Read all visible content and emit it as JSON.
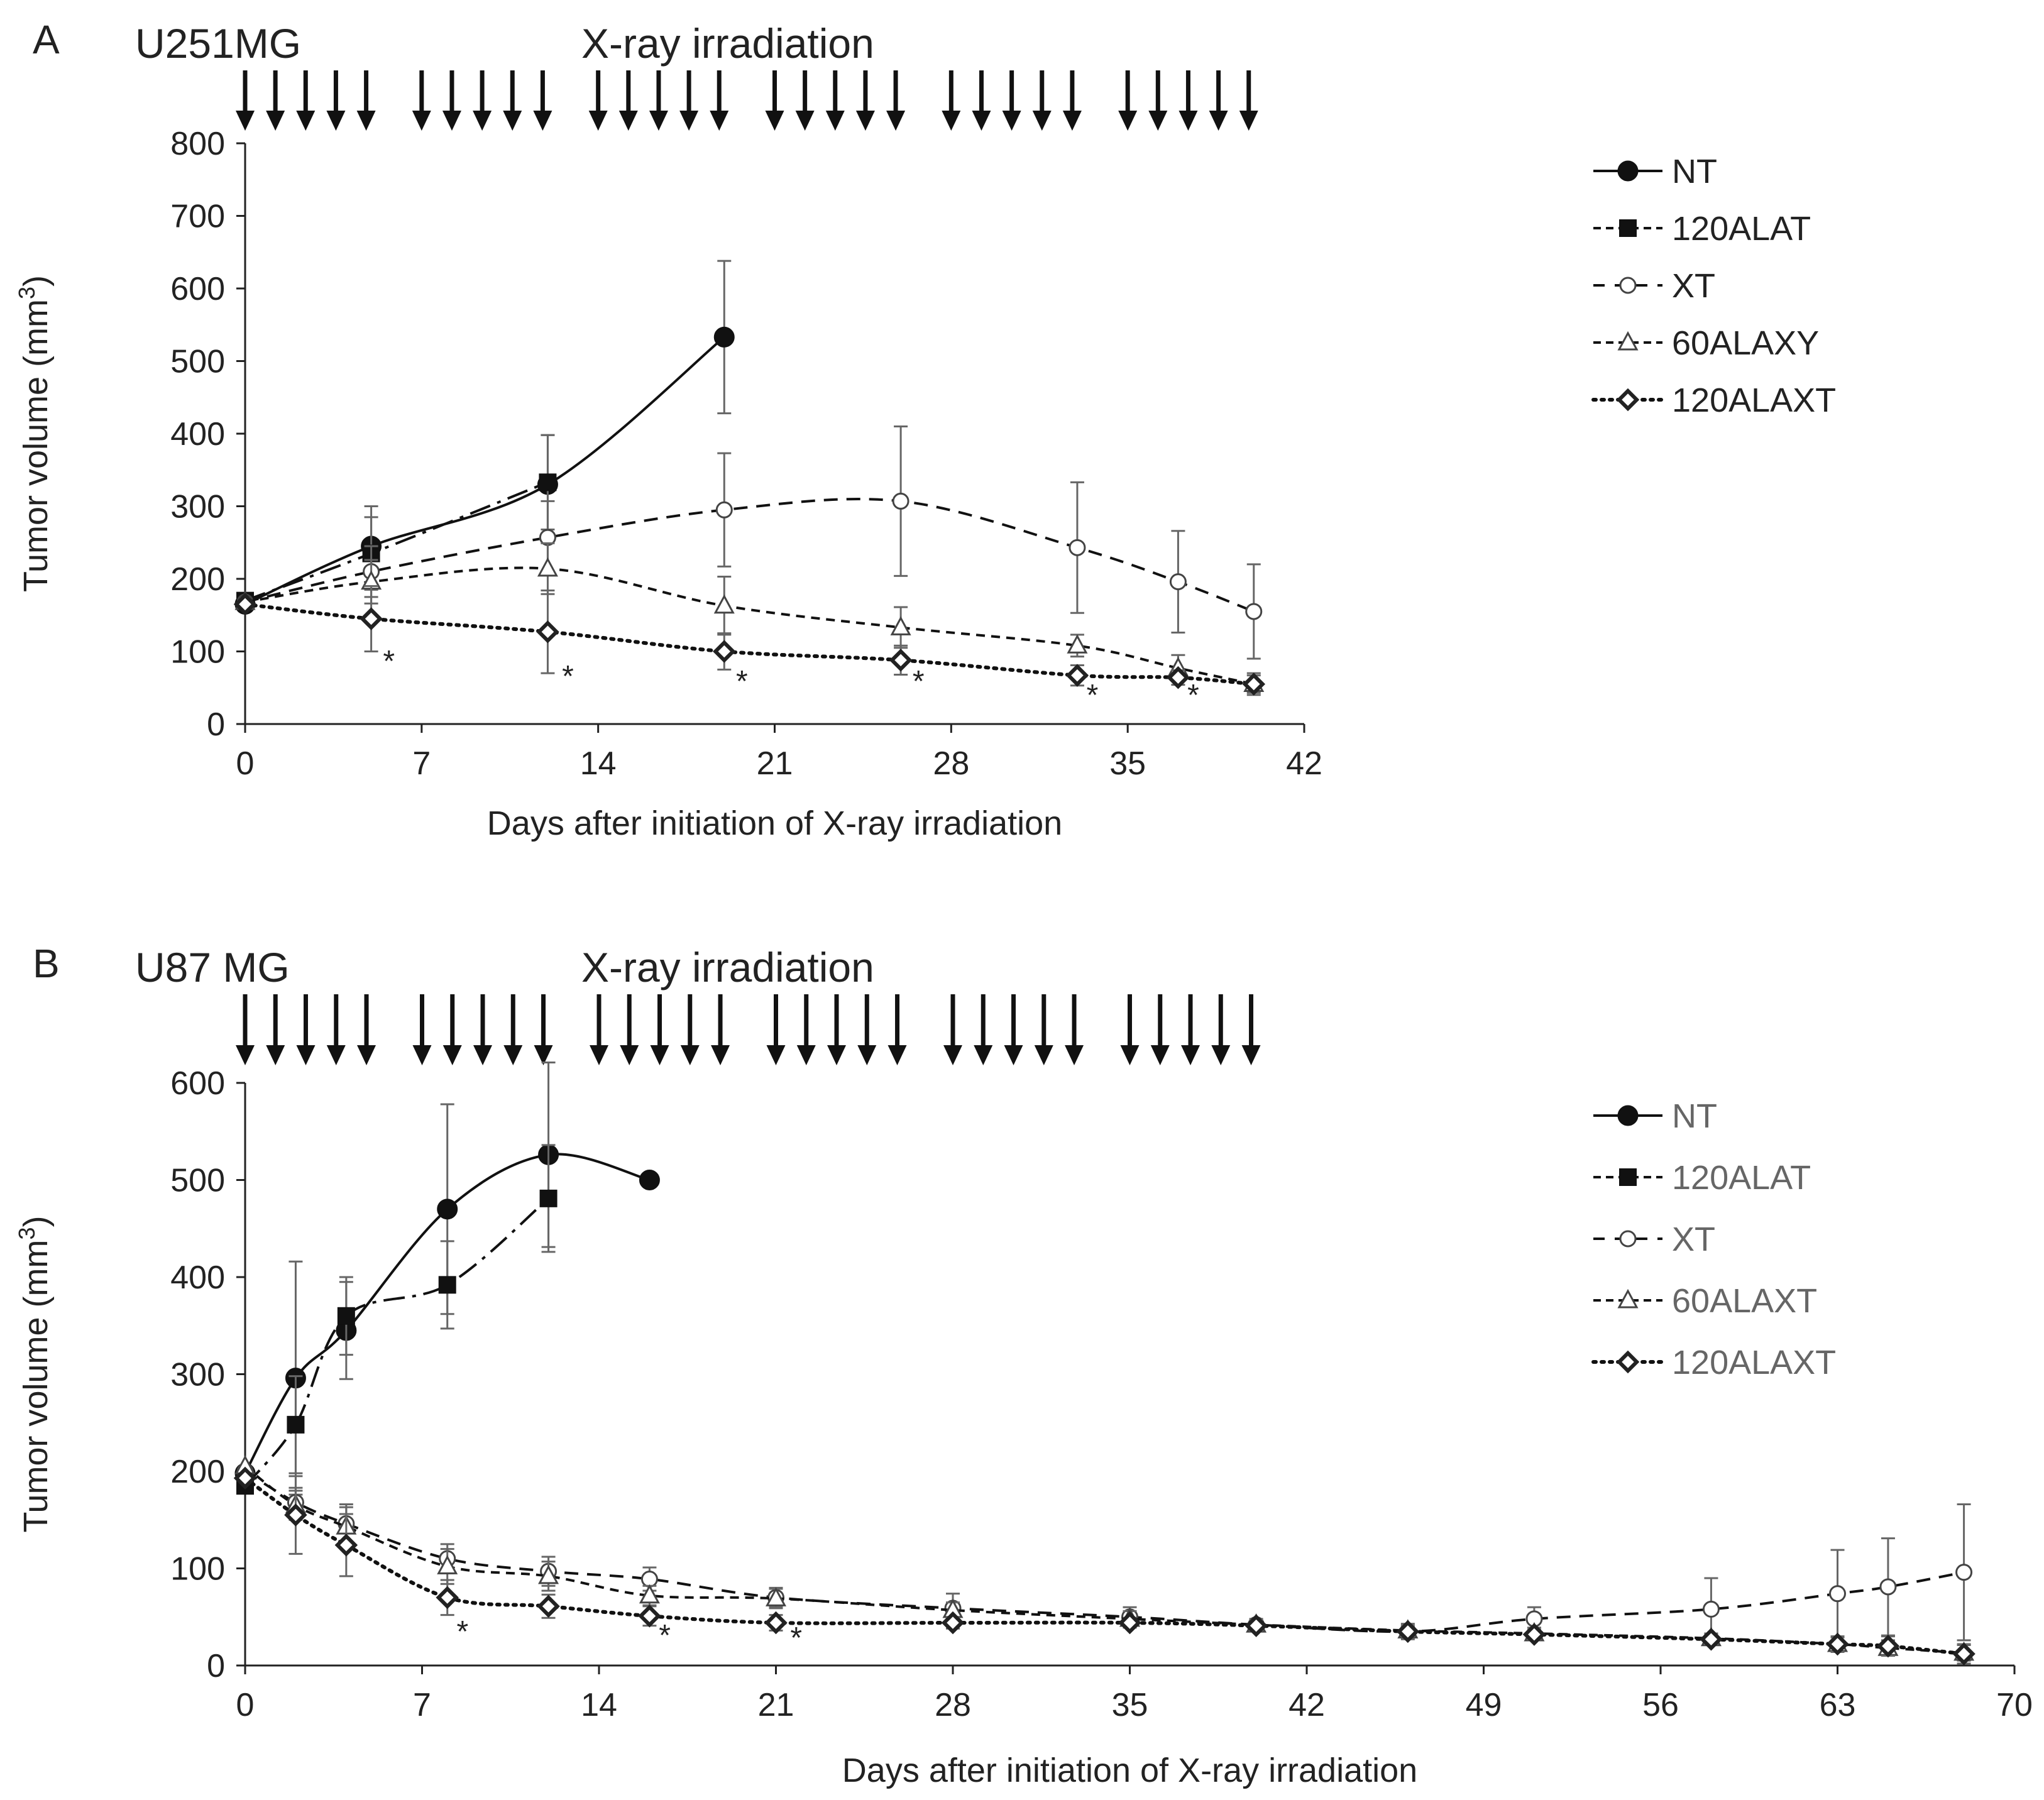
{
  "chart_data": [
    {
      "panel_label": "A",
      "type": "line",
      "title": "U251MG",
      "annotation": "X-ray irradiation",
      "xlabel": "Days after initiation of X-ray irradiation",
      "ylabel_main": "Tumor volume (mm",
      "ylabel_sup": "3",
      "ylabel_end": ")",
      "xlim": [
        0,
        42
      ],
      "ylim": [
        0,
        800
      ],
      "xticks": [
        0,
        7,
        14,
        21,
        28,
        35,
        42
      ],
      "yticks": [
        0,
        100,
        200,
        300,
        400,
        500,
        600,
        700,
        800
      ],
      "irradiation_days": [
        0,
        1.2,
        2.4,
        3.6,
        4.8,
        7,
        8.2,
        9.4,
        10.6,
        11.8,
        14,
        15.2,
        16.4,
        17.6,
        18.8,
        21,
        22.2,
        23.4,
        24.6,
        25.8,
        28,
        29.2,
        30.4,
        31.6,
        32.8,
        35,
        36.2,
        37.4,
        38.6,
        39.8
      ],
      "series": [
        {
          "name": "NT",
          "marker": "circle-filled",
          "dash": "solid",
          "x": [
            0,
            5,
            12,
            19
          ],
          "y": [
            165,
            245,
            330,
            533
          ],
          "err": [
            null,
            55,
            68,
            105
          ]
        },
        {
          "name": "120ALAT",
          "marker": "square-filled",
          "dash": "dashdot",
          "x": [
            0,
            5,
            12
          ],
          "y": [
            170,
            235,
            333
          ],
          "err": [
            null,
            50,
            65
          ]
        },
        {
          "name": "XT",
          "marker": "circle-open",
          "dash": "dash",
          "x": [
            0,
            5,
            12,
            19,
            26,
            33,
            37,
            40
          ],
          "y": [
            168,
            210,
            257,
            295,
            307,
            243,
            196,
            155
          ],
          "err": [
            null,
            35,
            50,
            78,
            103,
            90,
            70,
            65
          ]
        },
        {
          "name": "60ALAXY",
          "marker": "triangle-open",
          "dash": "dash2",
          "x": [
            0,
            5,
            12,
            19,
            26,
            33,
            37,
            40
          ],
          "y": [
            168,
            196,
            214,
            163,
            133,
            108,
            77,
            55
          ],
          "err": [
            null,
            30,
            35,
            40,
            28,
            15,
            18,
            12
          ]
        },
        {
          "name": "120ALAXT",
          "marker": "diamond-open",
          "dash": "dotted",
          "x": [
            0,
            5,
            12,
            19,
            26,
            33,
            37,
            40
          ],
          "y": [
            165,
            145,
            127,
            100,
            88,
            67,
            64,
            55
          ],
          "err": [
            null,
            45,
            57,
            25,
            20,
            14,
            10,
            15
          ]
        }
      ],
      "significance_marks": [
        {
          "x": 5.7,
          "label": "*"
        },
        {
          "x": 12.8,
          "label": "*"
        },
        {
          "x": 19.7,
          "label": "*"
        },
        {
          "x": 26.7,
          "label": "*"
        },
        {
          "x": 33.6,
          "label": "*"
        },
        {
          "x": 37.6,
          "label": "*"
        }
      ],
      "legend": [
        {
          "label": "NT",
          "gray": false
        },
        {
          "label": "120ALAT",
          "gray": false
        },
        {
          "label": "XT",
          "gray": false
        },
        {
          "label": "60ALAXY",
          "gray": false
        },
        {
          "label": "120ALAXT",
          "gray": false
        }
      ]
    },
    {
      "panel_label": "B",
      "type": "line",
      "title": "U87 MG",
      "annotation": "X-ray irradiation",
      "xlabel": "Days after initiation of X-ray irradiation",
      "ylabel_main": "Tumor volume (mm",
      "ylabel_sup": "3",
      "ylabel_end": ")",
      "xlim": [
        0,
        70
      ],
      "ylim": [
        0,
        600
      ],
      "xticks": [
        0,
        7,
        14,
        21,
        28,
        35,
        42,
        49,
        56,
        63,
        70
      ],
      "yticks": [
        0,
        100,
        200,
        300,
        400,
        500,
        600
      ],
      "irradiation_days": [
        0,
        1.2,
        2.4,
        3.6,
        4.8,
        7,
        8.2,
        9.4,
        10.6,
        11.8,
        14,
        15.2,
        16.4,
        17.6,
        18.8,
        21,
        22.2,
        23.4,
        24.6,
        25.8,
        28,
        29.2,
        30.4,
        31.6,
        32.8,
        35,
        36.2,
        37.4,
        38.6,
        39.8
      ],
      "series": [
        {
          "name": "NT",
          "marker": "circle-filled",
          "dash": "solid",
          "x": [
            0,
            2,
            4,
            8,
            12,
            16
          ],
          "y": [
            198,
            296,
            345,
            470,
            526,
            500
          ],
          "err": [
            null,
            120,
            50,
            108,
            95,
            null
          ]
        },
        {
          "name": "120ALAT",
          "marker": "square-filled",
          "dash": "dashdot",
          "x": [
            0,
            2,
            4,
            8,
            12
          ],
          "y": [
            185,
            248,
            360,
            392,
            481
          ],
          "err": [
            null,
            50,
            40,
            45,
            55
          ]
        },
        {
          "name": "XT",
          "marker": "circle-open",
          "dash": "dash",
          "x": [
            0,
            2,
            4,
            8,
            12,
            16,
            21,
            28,
            35,
            40,
            46,
            51,
            58,
            63,
            65,
            68
          ],
          "y": [
            200,
            168,
            146,
            110,
            97,
            89,
            70,
            59,
            50,
            42,
            35,
            48,
            58,
            74,
            81,
            96
          ],
          "err": [
            null,
            15,
            20,
            15,
            15,
            12,
            10,
            15,
            10,
            6,
            8,
            12,
            32,
            45,
            50,
            70
          ]
        },
        {
          "name": "60ALAXT",
          "marker": "triangle-open",
          "dash": "dash2",
          "x": [
            0,
            2,
            4,
            8,
            12,
            16,
            21,
            28,
            35,
            40,
            46,
            51,
            58,
            63,
            65,
            68
          ],
          "y": [
            205,
            165,
            143,
            102,
            92,
            72,
            69,
            57,
            48,
            42,
            36,
            33,
            28,
            22,
            18,
            13
          ],
          "err": [
            null,
            15,
            20,
            18,
            15,
            10,
            10,
            8,
            8,
            5,
            5,
            6,
            5,
            8,
            8,
            8
          ]
        },
        {
          "name": "120ALAXT",
          "marker": "diamond-open",
          "dash": "dotted",
          "x": [
            0,
            2,
            4,
            8,
            12,
            16,
            21,
            28,
            35,
            40,
            46,
            51,
            58,
            63,
            65,
            68
          ],
          "y": [
            193,
            155,
            124,
            70,
            61,
            51,
            44,
            44,
            44,
            41,
            35,
            32,
            27,
            22,
            20,
            12
          ],
          "err": [
            null,
            40,
            32,
            18,
            12,
            10,
            8,
            6,
            5,
            5,
            5,
            5,
            5,
            8,
            10,
            10
          ]
        }
      ],
      "significance_marks": [
        {
          "x": 8.6,
          "label": "*"
        },
        {
          "x": 16.6,
          "label": "*"
        },
        {
          "x": 21.8,
          "label": "*"
        }
      ],
      "legend": [
        {
          "label": "NT",
          "gray": true
        },
        {
          "label": "120ALAT",
          "gray": true
        },
        {
          "label": "XT",
          "gray": true
        },
        {
          "label": "60ALAXT",
          "gray": true
        },
        {
          "label": "120ALAXT",
          "gray": true
        }
      ]
    }
  ]
}
